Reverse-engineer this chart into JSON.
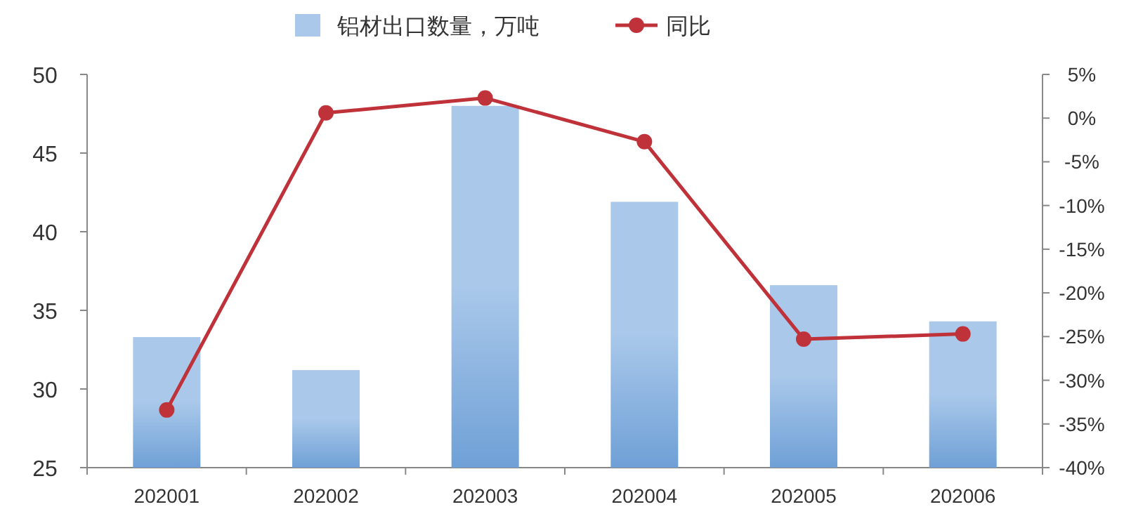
{
  "chart_data": {
    "type": "bar",
    "categories": [
      "202001",
      "202002",
      "202003",
      "202004",
      "202005",
      "202006"
    ],
    "series": [
      {
        "name": "铝材出口数量，万吨",
        "color": "#a9c8ea",
        "values": [
          33.3,
          31.2,
          48.0,
          41.9,
          36.6,
          34.3
        ]
      },
      {
        "name": "同比",
        "type": "line",
        "axis": "y2",
        "color": "#c0323a",
        "marker": "circle",
        "values": [
          -33.4,
          0.6,
          2.3,
          -2.7,
          -25.3,
          -24.7
        ]
      }
    ],
    "ylim": [
      25,
      50
    ],
    "yticks": [
      25,
      30,
      35,
      40,
      45,
      50
    ],
    "y2lim": [
      -40,
      5
    ],
    "y2ticks": [
      {
        "value": 5,
        "label": "5%"
      },
      {
        "value": 0,
        "label": "0%"
      },
      {
        "value": -5,
        "label": "-5%"
      },
      {
        "value": -10,
        "label": "-10%"
      },
      {
        "value": -15,
        "label": "-15%"
      },
      {
        "value": -20,
        "label": "-20%"
      },
      {
        "value": -25,
        "label": "-25%"
      },
      {
        "value": -30,
        "label": "-30%"
      },
      {
        "value": -35,
        "label": "-35%"
      },
      {
        "value": -40,
        "label": "-40%"
      }
    ],
    "legend": "top",
    "grid": false
  }
}
